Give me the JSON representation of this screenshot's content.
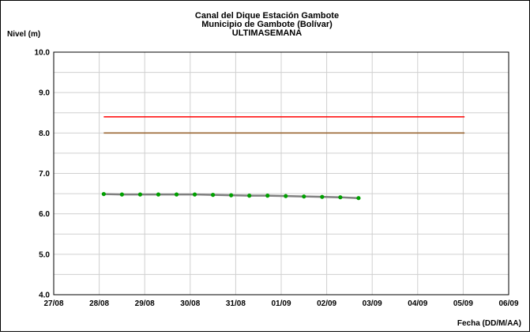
{
  "chart_data": {
    "type": "line",
    "title_lines": [
      "Canal del Dique  Estación Gambote",
      "Municipio de Gambote (Bolívar)",
      "ULTIMASEMANA"
    ],
    "ylabel": "Nivel (m)",
    "xlabel": "Fecha (DD/M/AA)",
    "ylim": [
      4.0,
      10.0
    ],
    "y_ticks": [
      "4.0",
      "5.0",
      "6.0",
      "7.0",
      "8.0",
      "9.0",
      "10.0"
    ],
    "x_ticks": [
      "27/08",
      "28/08",
      "29/08",
      "30/08",
      "31/08",
      "01/09",
      "02/09",
      "03/09",
      "04/09",
      "05/09",
      "06/09"
    ],
    "grid": true,
    "reference_lines": [
      {
        "y": 8.4,
        "color": "#ff0000"
      },
      {
        "y": 8.0,
        "color": "#996633"
      }
    ],
    "series": [
      {
        "color": "#808080",
        "marker_color": "#00a000",
        "points": [
          {
            "x": 1.1,
            "y": 6.49
          },
          {
            "x": 1.5,
            "y": 6.48
          },
          {
            "x": 1.9,
            "y": 6.48
          },
          {
            "x": 2.3,
            "y": 6.48
          },
          {
            "x": 2.7,
            "y": 6.48
          },
          {
            "x": 3.1,
            "y": 6.48
          },
          {
            "x": 3.5,
            "y": 6.47
          },
          {
            "x": 3.9,
            "y": 6.46
          },
          {
            "x": 4.3,
            "y": 6.45
          },
          {
            "x": 4.7,
            "y": 6.45
          },
          {
            "x": 5.1,
            "y": 6.44
          },
          {
            "x": 5.5,
            "y": 6.43
          },
          {
            "x": 5.9,
            "y": 6.42
          },
          {
            "x": 6.3,
            "y": 6.41
          },
          {
            "x": 6.7,
            "y": 6.39
          }
        ]
      }
    ]
  }
}
